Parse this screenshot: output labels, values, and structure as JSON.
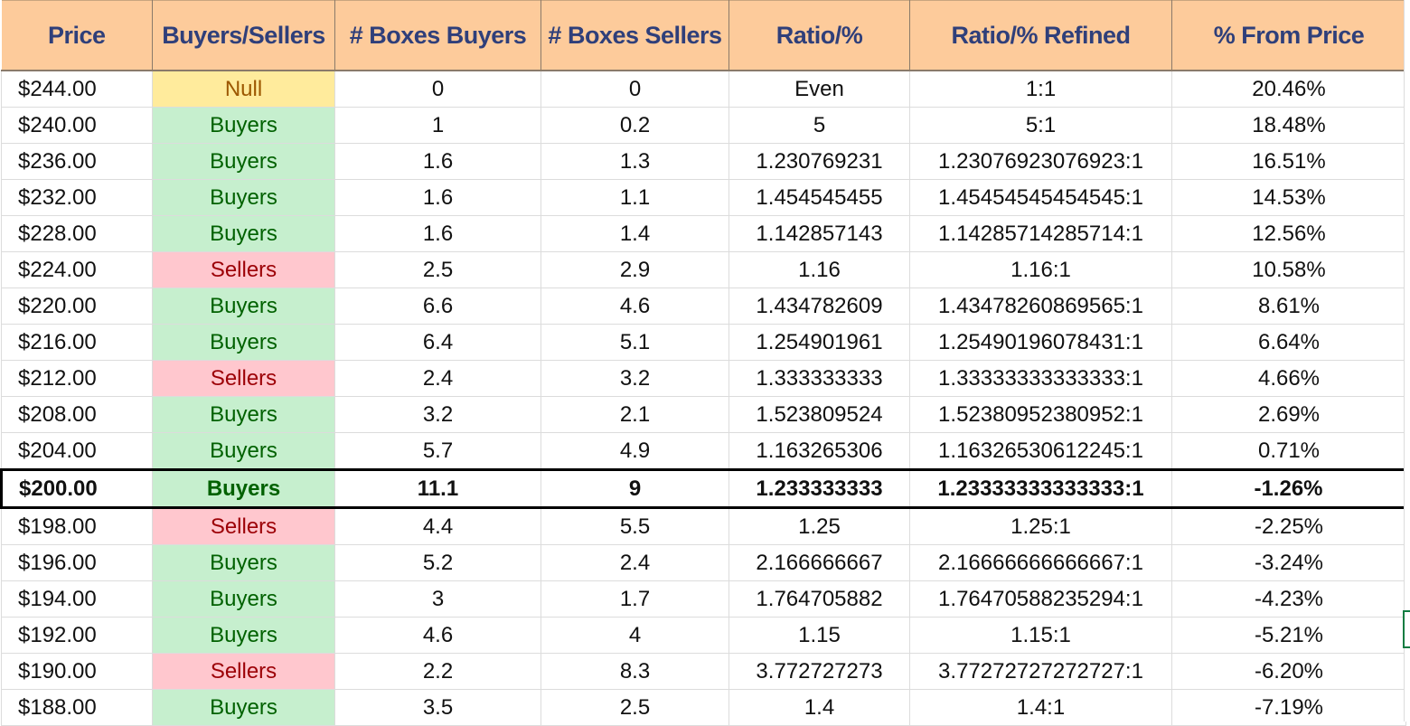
{
  "headers": [
    "Price",
    "Buyers/Sellers",
    "# Boxes Buyers",
    "# Boxes Sellers",
    "Ratio/%",
    "Ratio/% Refined",
    "% From Price"
  ],
  "rows": [
    {
      "price": "$244.00",
      "bs": "Null",
      "type": "null",
      "buyers": "0",
      "sellers": "0",
      "ratio": "Even",
      "refined": "1:1",
      "from": "20.46%"
    },
    {
      "price": "$240.00",
      "bs": "Buyers",
      "type": "buyers",
      "buyers": "1",
      "sellers": "0.2",
      "ratio": "5",
      "refined": "5:1",
      "from": "18.48%"
    },
    {
      "price": "$236.00",
      "bs": "Buyers",
      "type": "buyers",
      "buyers": "1.6",
      "sellers": "1.3",
      "ratio": "1.230769231",
      "refined": "1.23076923076923:1",
      "from": "16.51%"
    },
    {
      "price": "$232.00",
      "bs": "Buyers",
      "type": "buyers",
      "buyers": "1.6",
      "sellers": "1.1",
      "ratio": "1.454545455",
      "refined": "1.45454545454545:1",
      "from": "14.53%"
    },
    {
      "price": "$228.00",
      "bs": "Buyers",
      "type": "buyers",
      "buyers": "1.6",
      "sellers": "1.4",
      "ratio": "1.142857143",
      "refined": "1.14285714285714:1",
      "from": "12.56%"
    },
    {
      "price": "$224.00",
      "bs": "Sellers",
      "type": "sellers",
      "buyers": "2.5",
      "sellers": "2.9",
      "ratio": "1.16",
      "refined": "1.16:1",
      "from": "10.58%"
    },
    {
      "price": "$220.00",
      "bs": "Buyers",
      "type": "buyers",
      "buyers": "6.6",
      "sellers": "4.6",
      "ratio": "1.434782609",
      "refined": "1.43478260869565:1",
      "from": "8.61%"
    },
    {
      "price": "$216.00",
      "bs": "Buyers",
      "type": "buyers",
      "buyers": "6.4",
      "sellers": "5.1",
      "ratio": "1.254901961",
      "refined": "1.25490196078431:1",
      "from": "6.64%"
    },
    {
      "price": "$212.00",
      "bs": "Sellers",
      "type": "sellers",
      "buyers": "2.4",
      "sellers": "3.2",
      "ratio": "1.333333333",
      "refined": "1.33333333333333:1",
      "from": "4.66%"
    },
    {
      "price": "$208.00",
      "bs": "Buyers",
      "type": "buyers",
      "buyers": "3.2",
      "sellers": "2.1",
      "ratio": "1.523809524",
      "refined": "1.52380952380952:1",
      "from": "2.69%"
    },
    {
      "price": "$204.00",
      "bs": "Buyers",
      "type": "buyers",
      "buyers": "5.7",
      "sellers": "4.9",
      "ratio": "1.163265306",
      "refined": "1.16326530612245:1",
      "from": "0.71%"
    },
    {
      "price": "$200.00",
      "bs": "Buyers",
      "type": "buyers",
      "buyers": "11.1",
      "sellers": "9",
      "ratio": "1.233333333",
      "refined": "1.23333333333333:1",
      "from": "-1.26%",
      "current": true
    },
    {
      "price": "$198.00",
      "bs": "Sellers",
      "type": "sellers",
      "buyers": "4.4",
      "sellers": "5.5",
      "ratio": "1.25",
      "refined": "1.25:1",
      "from": "-2.25%"
    },
    {
      "price": "$196.00",
      "bs": "Buyers",
      "type": "buyers",
      "buyers": "5.2",
      "sellers": "2.4",
      "ratio": "2.166666667",
      "refined": "2.16666666666667:1",
      "from": "-3.24%"
    },
    {
      "price": "$194.00",
      "bs": "Buyers",
      "type": "buyers",
      "buyers": "3",
      "sellers": "1.7",
      "ratio": "1.764705882",
      "refined": "1.76470588235294:1",
      "from": "-4.23%"
    },
    {
      "price": "$192.00",
      "bs": "Buyers",
      "type": "buyers",
      "buyers": "4.6",
      "sellers": "4",
      "ratio": "1.15",
      "refined": "1.15:1",
      "from": "-5.21%"
    },
    {
      "price": "$190.00",
      "bs": "Sellers",
      "type": "sellers",
      "buyers": "2.2",
      "sellers": "8.3",
      "ratio": "3.772727273",
      "refined": "3.77272727272727:1",
      "from": "-6.20%"
    },
    {
      "price": "$188.00",
      "bs": "Buyers",
      "type": "buyers",
      "buyers": "3.5",
      "sellers": "2.5",
      "ratio": "1.4",
      "refined": "1.4:1",
      "from": "-7.19%"
    }
  ],
  "colors": {
    "header_bg": "#fdcb9b",
    "header_text": "#2f3f7a",
    "buyers_bg": "#c6efce",
    "buyers_text": "#006100",
    "sellers_bg": "#ffc7ce",
    "sellers_text": "#9c0006",
    "null_bg": "#ffeb9c",
    "null_text": "#9c5700"
  }
}
